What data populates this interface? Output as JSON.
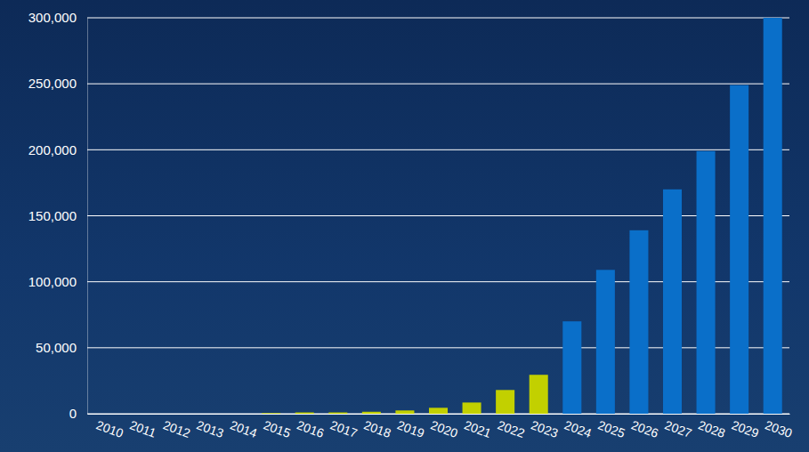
{
  "chart_data": {
    "type": "bar",
    "categories": [
      "2010",
      "2011",
      "2012",
      "2013",
      "2014",
      "2015",
      "2016",
      "2017",
      "2018",
      "2019",
      "2020",
      "2021",
      "2022",
      "2023",
      "2024",
      "2025",
      "2026",
      "2027",
      "2028",
      "2029",
      "2030"
    ],
    "values": [
      0,
      0,
      0,
      0,
      0,
      500,
      1000,
      1000,
      1500,
      2500,
      4500,
      8500,
      18000,
      29500,
      70000,
      109000,
      139000,
      170000,
      199000,
      249000,
      300000
    ],
    "colors": [
      "#c2d000",
      "#c2d000",
      "#c2d000",
      "#c2d000",
      "#c2d000",
      "#c2d000",
      "#c2d000",
      "#c2d000",
      "#c2d000",
      "#c2d000",
      "#c2d000",
      "#c2d000",
      "#c2d000",
      "#c2d000",
      "#0a6fc9",
      "#0a6fc9",
      "#0a6fc9",
      "#0a6fc9",
      "#0a6fc9",
      "#0a6fc9",
      "#0a6fc9"
    ],
    "ylim": [
      0,
      300000
    ],
    "yticks": [
      0,
      {
        "value": 50000,
        "label": "50,000"
      },
      {
        "value": 100000,
        "label": "100,000"
      },
      {
        "value": 150000,
        "label": "150,000"
      },
      {
        "value": 200000,
        "label": "200,000"
      },
      {
        "value": 250000,
        "label": "250,000"
      },
      {
        "value": 300000,
        "label": "300,000"
      }
    ],
    "grid": true
  }
}
